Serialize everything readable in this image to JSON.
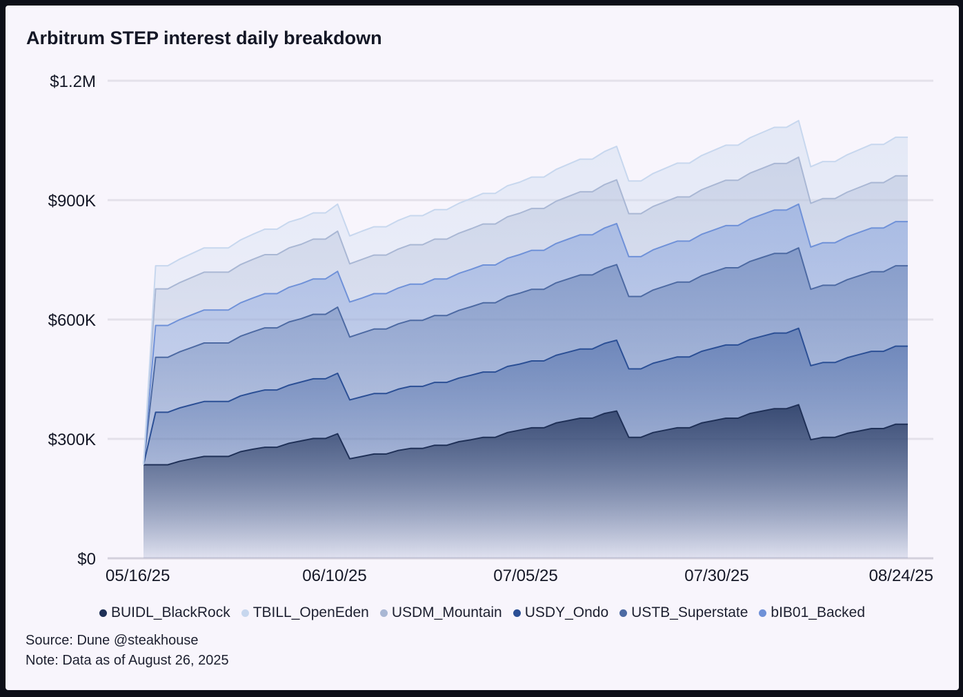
{
  "title": "Arbitrum STEP interest daily breakdown",
  "source": "Source: Dune @steakhouse",
  "note": "Note: Data as of August 26, 2025",
  "chart_data": {
    "type": "area",
    "stacked": true,
    "x_start": "05/16/25",
    "x_ticks": [
      "05/16/25",
      "06/10/25",
      "07/05/25",
      "07/30/25",
      "08/24/25"
    ],
    "y_ticks": [
      "$0",
      "$300K",
      "$600K",
      "$900K",
      "$1.2M"
    ],
    "ylim": [
      0,
      1200000
    ],
    "grid": true,
    "legend_position": "bottom",
    "series": [
      {
        "name": "BUIDL_BlackRock",
        "color": "#1f3057",
        "values": [
          235000,
          235000,
          235000,
          244000,
          250000,
          256000,
          256000,
          256000,
          268000,
          274000,
          279000,
          279000,
          289000,
          295000,
          301000,
          301000,
          313000,
          250000,
          256000,
          262000,
          262000,
          271000,
          276000,
          276000,
          284000,
          284000,
          293000,
          298000,
          304000,
          304000,
          316000,
          322000,
          328000,
          328000,
          340000,
          346000,
          352000,
          352000,
          364000,
          370000,
          304000,
          304000,
          316000,
          322000,
          328000,
          328000,
          340000,
          346000,
          352000,
          352000,
          364000,
          370000,
          376000,
          376000,
          386000,
          298000,
          304000,
          304000,
          314000,
          320000,
          326000,
          326000,
          337000,
          337000
        ]
      },
      {
        "name": "USDY_Ondo",
        "color": "#2b4f95",
        "values": [
          0,
          132000,
          132000,
          134000,
          136000,
          138000,
          138000,
          138000,
          140000,
          142000,
          144000,
          144000,
          146000,
          148000,
          150000,
          150000,
          152000,
          148000,
          150000,
          152000,
          152000,
          154000,
          156000,
          156000,
          158000,
          158000,
          160000,
          162000,
          164000,
          164000,
          166000,
          166000,
          168000,
          168000,
          170000,
          172000,
          174000,
          174000,
          176000,
          178000,
          172000,
          172000,
          174000,
          176000,
          178000,
          178000,
          180000,
          182000,
          184000,
          184000,
          186000,
          188000,
          190000,
          190000,
          192000,
          186000,
          188000,
          188000,
          190000,
          192000,
          194000,
          194000,
          196000,
          196000
        ]
      },
      {
        "name": "USTB_Superstate",
        "color": "#4d6aa3",
        "values": [
          0,
          138000,
          138000,
          141000,
          144000,
          147000,
          147000,
          147000,
          150000,
          153000,
          156000,
          156000,
          159000,
          159000,
          162000,
          162000,
          166000,
          158000,
          160000,
          162000,
          162000,
          164000,
          166000,
          166000,
          168000,
          168000,
          170000,
          172000,
          174000,
          174000,
          176000,
          178000,
          180000,
          180000,
          182000,
          184000,
          186000,
          186000,
          188000,
          190000,
          182000,
          182000,
          184000,
          186000,
          188000,
          188000,
          190000,
          192000,
          194000,
          194000,
          196000,
          198000,
          200000,
          200000,
          202000,
          192000,
          194000,
          194000,
          196000,
          198000,
          200000,
          200000,
          202000,
          202000
        ]
      },
      {
        "name": "bIB01_Backed",
        "color": "#6f91d8",
        "values": [
          0,
          80000,
          80000,
          81000,
          82000,
          83000,
          83000,
          83000,
          84000,
          85000,
          86000,
          86000,
          87000,
          88000,
          89000,
          89000,
          90000,
          88000,
          88000,
          89000,
          89000,
          90000,
          91000,
          91000,
          92000,
          92000,
          93000,
          94000,
          95000,
          95000,
          96000,
          97000,
          98000,
          98000,
          99000,
          100000,
          101000,
          101000,
          102000,
          103000,
          100000,
          100000,
          101000,
          102000,
          103000,
          103000,
          104000,
          105000,
          106000,
          106000,
          107000,
          108000,
          109000,
          109000,
          110000,
          106000,
          107000,
          107000,
          108000,
          109000,
          110000,
          110000,
          111000,
          111000
        ]
      },
      {
        "name": "USDM_Mountain",
        "color": "#a9b7d4",
        "values": [
          0,
          92000,
          92000,
          93000,
          94000,
          95000,
          95000,
          95000,
          96000,
          97000,
          98000,
          98000,
          99000,
          99000,
          100000,
          100000,
          101000,
          96000,
          97000,
          97000,
          97000,
          98000,
          99000,
          99000,
          100000,
          100000,
          101000,
          102000,
          103000,
          103000,
          104000,
          104000,
          105000,
          105000,
          106000,
          107000,
          108000,
          108000,
          109000,
          110000,
          108000,
          108000,
          109000,
          110000,
          111000,
          111000,
          112000,
          113000,
          114000,
          114000,
          115000,
          116000,
          117000,
          117000,
          118000,
          110000,
          111000,
          111000,
          112000,
          113000,
          114000,
          114000,
          115000,
          115000
        ]
      },
      {
        "name": "TBILL_OpenEden",
        "color": "#c7d7ee",
        "values": [
          0,
          58000,
          58000,
          59000,
          60000,
          61000,
          61000,
          61000,
          62000,
          63000,
          64000,
          64000,
          65000,
          65000,
          66000,
          66000,
          68000,
          70000,
          71000,
          71000,
          71000,
          72000,
          73000,
          73000,
          74000,
          74000,
          75000,
          76000,
          77000,
          77000,
          78000,
          78000,
          79000,
          79000,
          80000,
          81000,
          82000,
          82000,
          83000,
          84000,
          82000,
          82000,
          83000,
          84000,
          85000,
          85000,
          86000,
          87000,
          88000,
          88000,
          89000,
          90000,
          91000,
          91000,
          92000,
          92000,
          93000,
          93000,
          94000,
          95000,
          96000,
          96000,
          97000,
          97000
        ]
      }
    ]
  }
}
